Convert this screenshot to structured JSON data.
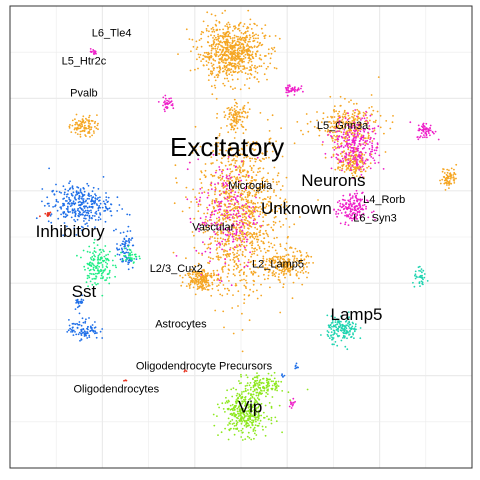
{
  "chart_data": {
    "type": "scatter",
    "title": "",
    "xlabel": "",
    "ylabel": "",
    "xlim": [
      0,
      1
    ],
    "ylim": [
      0,
      1
    ],
    "grid": true,
    "legend": "none",
    "colors": {
      "excitatory": "#F5A623",
      "neurons": "#EE1FC8",
      "inhibitory": "#1F6FE8",
      "sst": "#1FEE86",
      "lamp5": "#1FD4B0",
      "vip": "#8EE81F",
      "red": "#E8331F",
      "background": "#FFFFFF",
      "panel": "#FFFFFF",
      "gridline": "#EBEBEB",
      "border": "#333333"
    },
    "labels": [
      {
        "text": "L6_Tle4",
        "x": 0.22,
        "y": 0.94,
        "size": "small"
      },
      {
        "text": "L5_Htr2c",
        "x": 0.16,
        "y": 0.88,
        "size": "small"
      },
      {
        "text": "Pvalb",
        "x": 0.16,
        "y": 0.81,
        "size": "small"
      },
      {
        "text": "Excitatory",
        "x": 0.47,
        "y": 0.69,
        "size": "xlarge"
      },
      {
        "text": "L5_Grin3a",
        "x": 0.72,
        "y": 0.74,
        "size": "small"
      },
      {
        "text": "Neurons",
        "x": 0.7,
        "y": 0.62,
        "size": "large"
      },
      {
        "text": "Microglia",
        "x": 0.52,
        "y": 0.61,
        "size": "small"
      },
      {
        "text": "Unknown",
        "x": 0.62,
        "y": 0.56,
        "size": "large"
      },
      {
        "text": "L4_Rorb",
        "x": 0.81,
        "y": 0.58,
        "size": "small"
      },
      {
        "text": "L6_Syn3",
        "x": 0.79,
        "y": 0.54,
        "size": "small"
      },
      {
        "text": "Vascular",
        "x": 0.44,
        "y": 0.52,
        "size": "small"
      },
      {
        "text": "Inhibitory",
        "x": 0.13,
        "y": 0.51,
        "size": "large"
      },
      {
        "text": "L2/3_Cux2",
        "x": 0.36,
        "y": 0.43,
        "size": "small"
      },
      {
        "text": "L2_Lamp5",
        "x": 0.58,
        "y": 0.44,
        "size": "small"
      },
      {
        "text": "Sst",
        "x": 0.16,
        "y": 0.38,
        "size": "large"
      },
      {
        "text": "Lamp5",
        "x": 0.75,
        "y": 0.33,
        "size": "large"
      },
      {
        "text": "Astrocytes",
        "x": 0.37,
        "y": 0.31,
        "size": "small"
      },
      {
        "text": "Oligodendrocyte Precursors",
        "x": 0.42,
        "y": 0.22,
        "size": "small"
      },
      {
        "text": "Oligodendrocytes",
        "x": 0.23,
        "y": 0.17,
        "size": "small"
      },
      {
        "text": "Vip",
        "x": 0.52,
        "y": 0.13,
        "size": "large"
      }
    ],
    "series": [
      {
        "color": "#F5A623",
        "clusters": [
          {
            "cx": 0.48,
            "cy": 0.9,
            "rx": 0.065,
            "ry": 0.055,
            "n": 700
          },
          {
            "cx": 0.49,
            "cy": 0.76,
            "rx": 0.02,
            "ry": 0.025,
            "n": 90
          },
          {
            "cx": 0.5,
            "cy": 0.55,
            "rx": 0.085,
            "ry": 0.16,
            "n": 1100
          },
          {
            "cx": 0.41,
            "cy": 0.41,
            "rx": 0.028,
            "ry": 0.022,
            "n": 170
          },
          {
            "cx": 0.6,
            "cy": 0.44,
            "rx": 0.04,
            "ry": 0.028,
            "n": 200
          },
          {
            "cx": 0.73,
            "cy": 0.74,
            "rx": 0.065,
            "ry": 0.045,
            "n": 280
          },
          {
            "cx": 0.74,
            "cy": 0.66,
            "rx": 0.03,
            "ry": 0.025,
            "n": 150
          },
          {
            "cx": 0.16,
            "cy": 0.74,
            "rx": 0.025,
            "ry": 0.02,
            "n": 100
          },
          {
            "cx": 0.95,
            "cy": 0.63,
            "rx": 0.015,
            "ry": 0.02,
            "n": 70
          }
        ]
      },
      {
        "color": "#EE1FC8",
        "clusters": [
          {
            "cx": 0.75,
            "cy": 0.7,
            "rx": 0.045,
            "ry": 0.055,
            "n": 260
          },
          {
            "cx": 0.74,
            "cy": 0.56,
            "rx": 0.03,
            "ry": 0.03,
            "n": 170
          },
          {
            "cx": 0.47,
            "cy": 0.55,
            "rx": 0.06,
            "ry": 0.11,
            "n": 220
          },
          {
            "cx": 0.9,
            "cy": 0.73,
            "rx": 0.018,
            "ry": 0.016,
            "n": 60
          },
          {
            "cx": 0.61,
            "cy": 0.82,
            "rx": 0.016,
            "ry": 0.012,
            "n": 40
          },
          {
            "cx": 0.34,
            "cy": 0.79,
            "rx": 0.014,
            "ry": 0.012,
            "n": 35
          },
          {
            "cx": 0.18,
            "cy": 0.9,
            "rx": 0.007,
            "ry": 0.006,
            "n": 14
          },
          {
            "cx": 0.61,
            "cy": 0.14,
            "rx": 0.01,
            "ry": 0.012,
            "n": 15
          }
        ]
      },
      {
        "color": "#1F6FE8",
        "clusters": [
          {
            "cx": 0.15,
            "cy": 0.57,
            "rx": 0.06,
            "ry": 0.04,
            "n": 320
          },
          {
            "cx": 0.25,
            "cy": 0.47,
            "rx": 0.018,
            "ry": 0.04,
            "n": 80
          },
          {
            "cx": 0.16,
            "cy": 0.3,
            "rx": 0.03,
            "ry": 0.02,
            "n": 90
          },
          {
            "cx": 0.15,
            "cy": 0.36,
            "rx": 0.01,
            "ry": 0.015,
            "n": 25
          },
          {
            "cx": 0.62,
            "cy": 0.22,
            "rx": 0.004,
            "ry": 0.008,
            "n": 8
          },
          {
            "cx": 0.59,
            "cy": 0.2,
            "rx": 0.004,
            "ry": 0.004,
            "n": 5
          }
        ]
      },
      {
        "color": "#1FEE86",
        "clusters": [
          {
            "cx": 0.19,
            "cy": 0.44,
            "rx": 0.028,
            "ry": 0.04,
            "n": 150
          },
          {
            "cx": 0.26,
            "cy": 0.46,
            "rx": 0.015,
            "ry": 0.02,
            "n": 35
          }
        ]
      },
      {
        "color": "#1FD4B0",
        "clusters": [
          {
            "cx": 0.72,
            "cy": 0.3,
            "rx": 0.03,
            "ry": 0.025,
            "n": 160
          },
          {
            "cx": 0.89,
            "cy": 0.41,
            "rx": 0.016,
            "ry": 0.018,
            "n": 35
          }
        ]
      },
      {
        "color": "#8EE81F",
        "clusters": [
          {
            "cx": 0.51,
            "cy": 0.12,
            "rx": 0.045,
            "ry": 0.045,
            "n": 380
          },
          {
            "cx": 0.55,
            "cy": 0.18,
            "rx": 0.04,
            "ry": 0.02,
            "n": 120
          }
        ]
      },
      {
        "color": "#E8331F",
        "clusters": [
          {
            "cx": 0.08,
            "cy": 0.55,
            "rx": 0.01,
            "ry": 0.008,
            "n": 15
          },
          {
            "cx": 0.25,
            "cy": 0.19,
            "rx": 0.003,
            "ry": 0.004,
            "n": 4
          },
          {
            "cx": 0.38,
            "cy": 0.21,
            "rx": 0.003,
            "ry": 0.003,
            "n": 3
          }
        ]
      }
    ]
  }
}
